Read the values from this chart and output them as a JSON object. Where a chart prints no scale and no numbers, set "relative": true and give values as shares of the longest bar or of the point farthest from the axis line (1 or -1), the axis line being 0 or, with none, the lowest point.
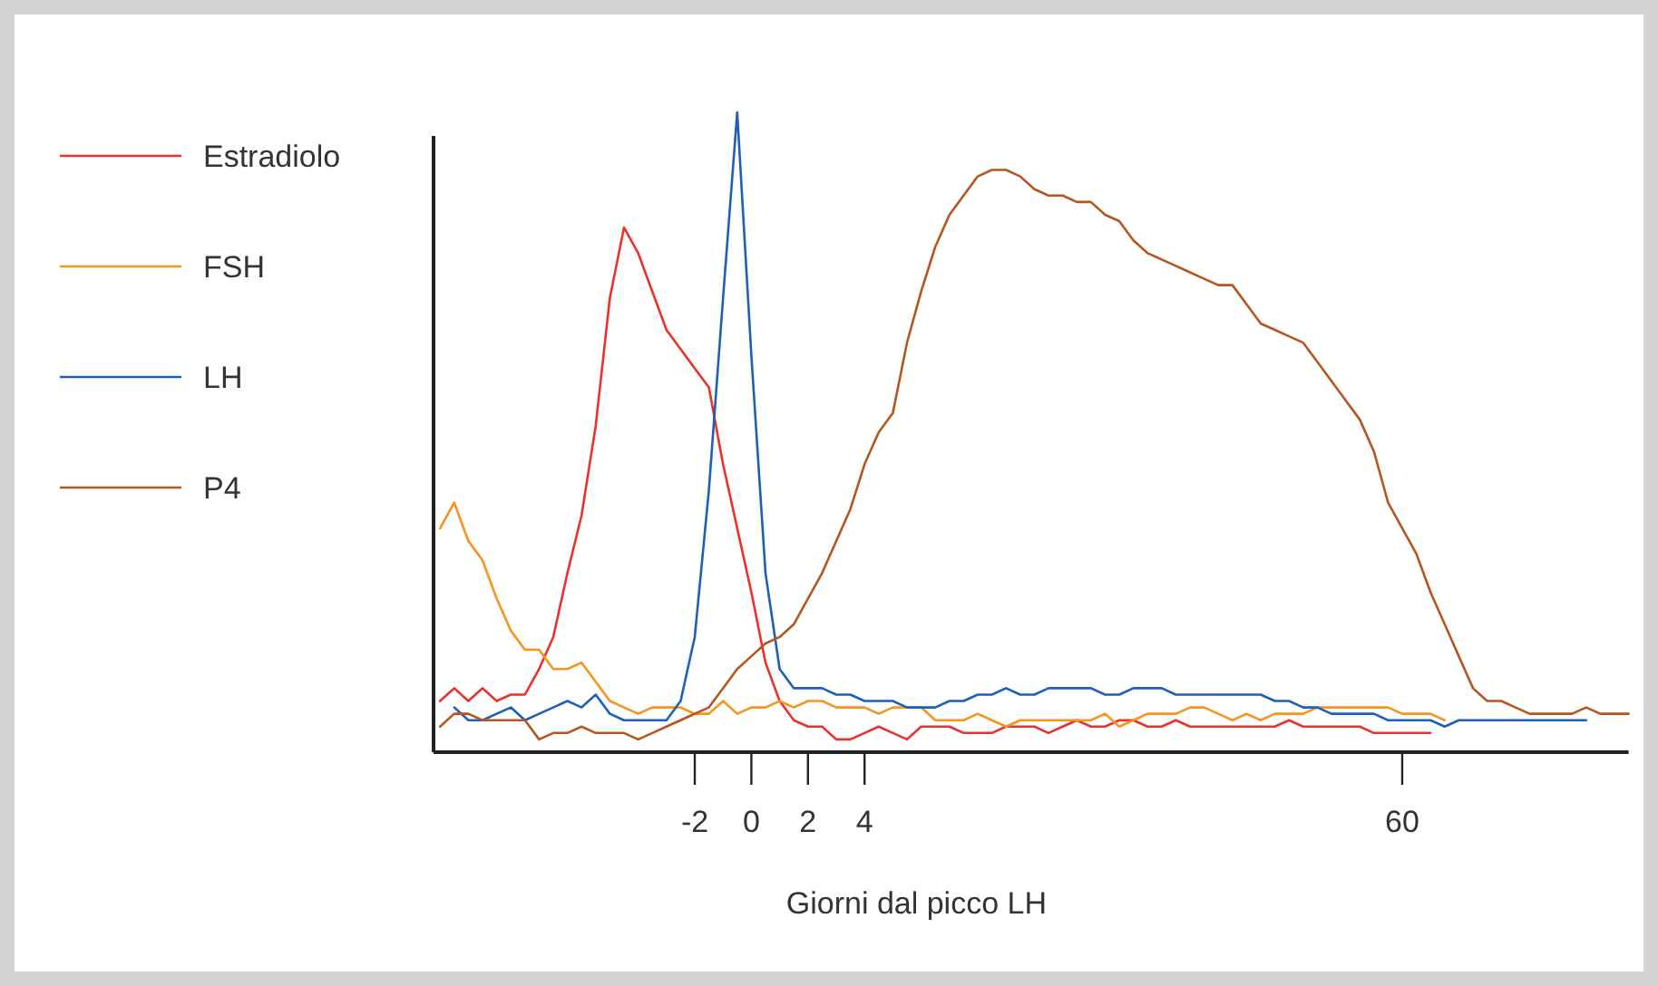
{
  "chart_data": {
    "type": "line",
    "relative": true,
    "xlabel": "Giorni dal picco LH",
    "legend": "left",
    "categories": [
      null,
      null,
      null,
      null,
      null,
      null,
      null,
      null,
      null,
      null,
      null,
      null,
      null,
      null,
      null,
      null,
      null,
      null,
      "-2",
      null,
      null,
      null,
      "0",
      null,
      null,
      null,
      "2",
      null,
      null,
      null,
      "4",
      null,
      null,
      null,
      null,
      null,
      null,
      null,
      null,
      null,
      null,
      null,
      null,
      null,
      null,
      null,
      null,
      null,
      null,
      null,
      null,
      null,
      null,
      null,
      null,
      null,
      null,
      null,
      null,
      null,
      null,
      null,
      null,
      null,
      null,
      null,
      null,
      null,
      "60",
      null,
      null,
      null,
      null,
      null,
      null,
      null,
      null,
      null,
      null,
      null,
      null,
      null,
      null,
      null,
      null
    ],
    "series": [
      {
        "name": "Estradiolo",
        "color": "#e8322b",
        "values": [
          0.08,
          0.1,
          0.08,
          0.1,
          0.08,
          0.09,
          0.09,
          0.13,
          0.18,
          0.28,
          0.37,
          0.51,
          0.71,
          0.82,
          0.78,
          0.72,
          0.66,
          0.63,
          0.6,
          0.57,
          0.45,
          0.35,
          0.25,
          0.14,
          0.08,
          0.05,
          0.04,
          0.04,
          0.02,
          0.02,
          0.03,
          0.04,
          0.03,
          0.02,
          0.04,
          0.04,
          0.04,
          0.03,
          0.03,
          0.03,
          0.04,
          0.04,
          0.04,
          0.03,
          0.04,
          0.05,
          0.04,
          0.04,
          0.05,
          0.05,
          0.04,
          0.04,
          0.05,
          0.04,
          0.04,
          0.04,
          0.04,
          0.04,
          0.04,
          0.04,
          0.05,
          0.04,
          0.04,
          0.04,
          0.04,
          0.04,
          0.03,
          0.03,
          0.03,
          0.03,
          0.03,
          null,
          null,
          null,
          null,
          null,
          null,
          null,
          null,
          null,
          null,
          null,
          null,
          null,
          null
        ]
      },
      {
        "name": "FSH",
        "color": "#f7941d",
        "values": [
          0.35,
          0.39,
          0.33,
          0.3,
          0.24,
          0.19,
          0.16,
          0.16,
          0.13,
          0.13,
          0.14,
          0.11,
          0.08,
          0.07,
          0.06,
          0.07,
          0.07,
          0.07,
          0.06,
          0.06,
          0.08,
          0.06,
          0.07,
          0.07,
          0.08,
          0.07,
          0.08,
          0.08,
          0.07,
          0.07,
          0.07,
          0.06,
          0.07,
          0.07,
          0.07,
          0.05,
          0.05,
          0.05,
          0.06,
          0.05,
          0.04,
          0.05,
          0.05,
          0.05,
          0.05,
          0.05,
          0.05,
          0.06,
          0.04,
          0.05,
          0.06,
          0.06,
          0.06,
          0.07,
          0.07,
          0.06,
          0.05,
          0.06,
          0.05,
          0.06,
          0.06,
          0.06,
          0.07,
          0.07,
          0.07,
          0.07,
          0.07,
          0.07,
          0.06,
          0.06,
          0.06,
          0.05,
          null,
          null,
          null,
          null,
          null,
          null,
          null,
          null,
          null,
          null,
          null,
          null,
          null
        ]
      },
      {
        "name": "LH",
        "color": "#1f5fb4",
        "values": [
          null,
          0.07,
          0.05,
          0.05,
          0.06,
          0.07,
          0.05,
          0.06,
          0.07,
          0.08,
          0.07,
          0.09,
          0.06,
          0.05,
          0.05,
          0.05,
          0.05,
          0.08,
          0.18,
          0.41,
          0.71,
          1,
          0.62,
          0.28,
          0.13,
          0.1,
          0.1,
          0.1,
          0.09,
          0.09,
          0.08,
          0.08,
          0.08,
          0.07,
          0.07,
          0.07,
          0.08,
          0.08,
          0.09,
          0.09,
          0.1,
          0.09,
          0.09,
          0.1,
          0.1,
          0.1,
          0.1,
          0.09,
          0.09,
          0.1,
          0.1,
          0.1,
          0.09,
          0.09,
          0.09,
          0.09,
          0.09,
          0.09,
          0.09,
          0.08,
          0.08,
          0.07,
          0.07,
          0.06,
          0.06,
          0.06,
          0.06,
          0.05,
          0.05,
          0.05,
          0.05,
          0.04,
          0.05,
          0.05,
          0.05,
          0.05,
          0.05,
          0.05,
          0.05,
          0.05,
          0.05,
          0.05,
          null,
          null,
          null
        ]
      },
      {
        "name": "P4",
        "color": "#b5561f",
        "values": [
          0.04,
          0.06,
          0.06,
          0.05,
          0.05,
          0.05,
          0.05,
          0.02,
          0.03,
          0.03,
          0.04,
          0.03,
          0.03,
          0.03,
          0.02,
          0.03,
          0.04,
          0.05,
          0.06,
          0.07,
          0.1,
          0.13,
          0.15,
          0.17,
          0.18,
          0.2,
          0.24,
          0.28,
          0.33,
          0.38,
          0.45,
          0.5,
          0.53,
          0.64,
          0.72,
          0.79,
          0.84,
          0.87,
          0.9,
          0.91,
          0.91,
          0.9,
          0.88,
          0.87,
          0.87,
          0.86,
          0.86,
          0.84,
          0.83,
          0.8,
          0.78,
          0.77,
          0.76,
          0.75,
          0.74,
          0.73,
          0.73,
          0.7,
          0.67,
          0.66,
          0.65,
          0.64,
          0.61,
          0.58,
          0.55,
          0.52,
          0.47,
          0.39,
          0.35,
          0.31,
          0.25,
          0.2,
          0.15,
          0.1,
          0.08,
          0.08,
          0.07,
          0.06,
          0.06,
          0.06,
          0.06,
          0.07,
          0.06,
          0.06,
          0.06
        ]
      }
    ]
  }
}
